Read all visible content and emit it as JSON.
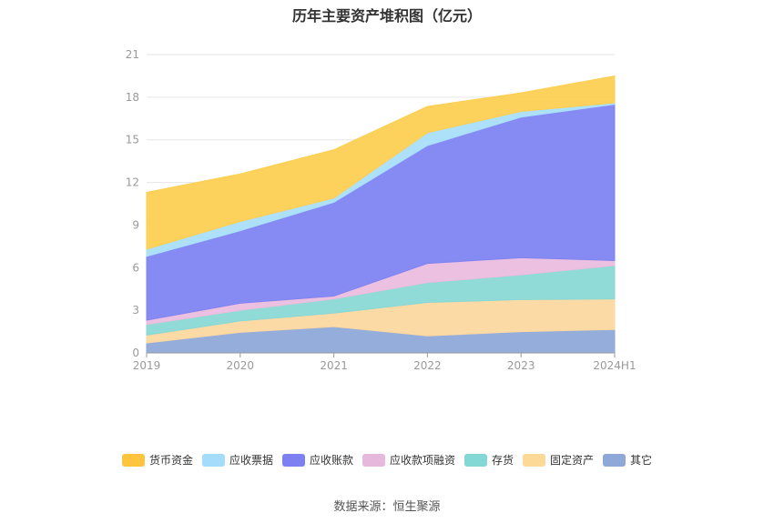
{
  "chart_data": {
    "type": "area",
    "stacked": true,
    "title": "历年主要资产堆积图（亿元）",
    "categories": [
      "2019",
      "2020",
      "2021",
      "2022",
      "2023",
      "2024H1"
    ],
    "ylim": [
      0,
      21
    ],
    "yticks": [
      0,
      3,
      6,
      9,
      12,
      15,
      18,
      21
    ],
    "grid": true,
    "legend_position": "bottom",
    "series": [
      {
        "name": "其它",
        "color": "#8fa9d9",
        "values": [
          0.7,
          1.45,
          1.85,
          1.2,
          1.5,
          1.65
        ]
      },
      {
        "name": "固定资产",
        "color": "#fcd8a0",
        "values": [
          0.55,
          0.8,
          0.95,
          2.35,
          2.25,
          2.15
        ]
      },
      {
        "name": "存货",
        "color": "#8ad8d6",
        "values": [
          0.75,
          0.75,
          1.0,
          1.4,
          1.75,
          2.35
        ]
      },
      {
        "name": "应收款项融资",
        "color": "#ebbdde",
        "values": [
          0.3,
          0.5,
          0.2,
          1.35,
          1.2,
          0.35
        ]
      },
      {
        "name": "应收账款",
        "color": "#8084f2",
        "values": [
          4.5,
          5.1,
          6.6,
          8.3,
          9.9,
          11.0
        ]
      },
      {
        "name": "应收票据",
        "color": "#a9dff9",
        "values": [
          0.5,
          0.65,
          0.3,
          0.9,
          0.4,
          0.1
        ]
      },
      {
        "name": "货币资金",
        "color": "#fccf53",
        "values": [
          4.0,
          3.35,
          3.4,
          1.85,
          1.3,
          1.9
        ]
      }
    ]
  },
  "legend": {
    "items": [
      {
        "label": "货币资金",
        "color": "#fcc53d"
      },
      {
        "label": "应收票据",
        "color": "#a6dcfb"
      },
      {
        "label": "应收账款",
        "color": "#7c80f1"
      },
      {
        "label": "应收款项融资",
        "color": "#e6b9dc"
      },
      {
        "label": "存货",
        "color": "#83d7d5"
      },
      {
        "label": "固定资产",
        "color": "#fcd996"
      },
      {
        "label": "其它",
        "color": "#8ea9d8"
      }
    ]
  },
  "source": "数据来源：恒生聚源"
}
